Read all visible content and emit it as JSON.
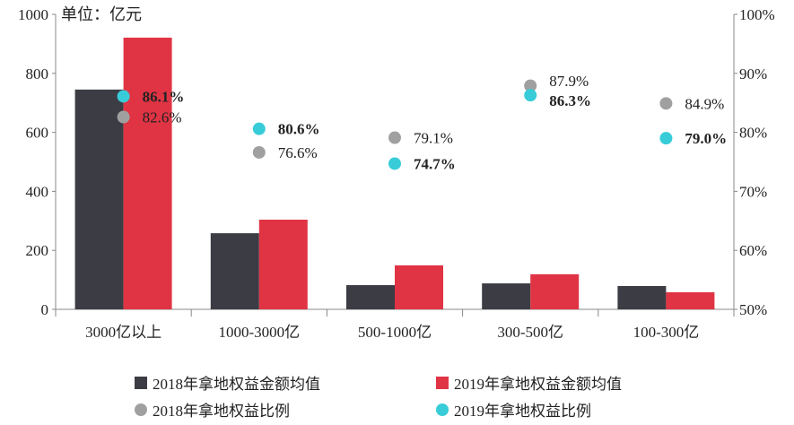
{
  "chart_data": {
    "type": "bar",
    "unit_label": "单位：亿元",
    "categories": [
      "3000亿以上",
      "1000-3000亿",
      "500-1000亿",
      "300-500亿",
      "100-300亿"
    ],
    "y_left": {
      "range": [
        0,
        1000
      ],
      "ticks": [
        "0",
        "200",
        "400",
        "600",
        "800",
        "1000"
      ]
    },
    "y_right": {
      "range": [
        50,
        100
      ],
      "ticks": [
        "50%",
        "60%",
        "70%",
        "80%",
        "90%",
        "100%"
      ]
    },
    "series": [
      {
        "name": "2018年拿地权益金额均值",
        "type": "bar",
        "axis": "left",
        "color": "#3c3c44",
        "values": [
          745,
          258,
          82,
          88,
          79
        ]
      },
      {
        "name": "2019年拿地权益金额均值",
        "type": "bar",
        "axis": "left",
        "color": "#e03444",
        "values": [
          921,
          304,
          149,
          119,
          58
        ]
      },
      {
        "name": "2018年拿地权益比例",
        "type": "scatter",
        "axis": "right",
        "color": "#a0a0a0",
        "values": [
          82.6,
          76.6,
          79.1,
          87.9,
          84.9
        ],
        "labels": [
          "82.6%",
          "76.6%",
          "79.1%",
          "87.9%",
          "84.9%"
        ]
      },
      {
        "name": "2019年拿地权益比例",
        "type": "scatter",
        "axis": "right",
        "color": "#38ccd8",
        "values": [
          86.1,
          80.6,
          74.7,
          86.3,
          79.0
        ],
        "labels": [
          "86.1%",
          "80.6%",
          "74.7%",
          "86.3%",
          "79.0%"
        ]
      }
    ],
    "legend_position": "bottom",
    "grid": false
  }
}
